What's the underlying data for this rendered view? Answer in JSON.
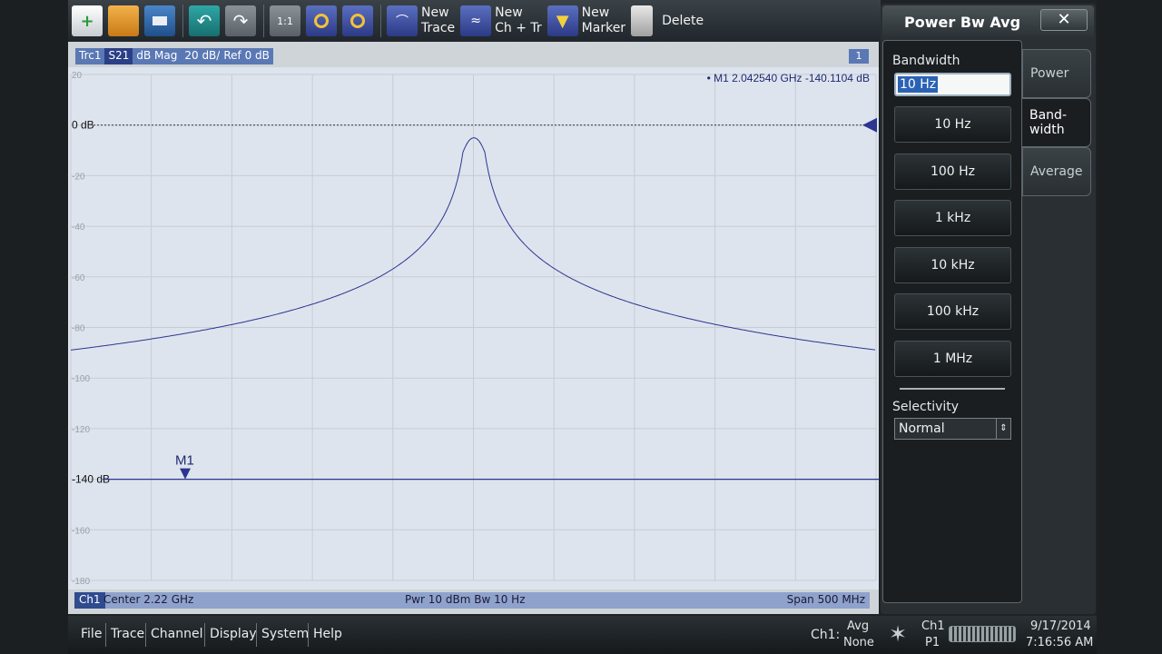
{
  "toolbar": {
    "new_trace": [
      "New",
      "Trace"
    ],
    "new_ch_tr": [
      "New",
      "Ch + Tr"
    ],
    "new_marker": [
      "New",
      "Marker"
    ],
    "delete": "Delete",
    "zoom_1to1": "1:1"
  },
  "trace_header": {
    "items": [
      "Trc1",
      "S21",
      "dB Mag",
      "20 dB/",
      "Ref 0 dB"
    ],
    "channel_badge": "1"
  },
  "marker_readout": {
    "name": "M1",
    "frequency": "2.042540",
    "freq_unit": "GHz",
    "value": "-140.1104",
    "value_unit": "dB"
  },
  "plot": {
    "y_ticks": [
      "20",
      "0 dB",
      "-20",
      "-40",
      "-60",
      "-80",
      "-100",
      "-120",
      "-140 dB",
      "-160",
      "-180"
    ],
    "marker_label": "M1",
    "ref_line_db": 0,
    "noise_floor_db": -140,
    "peak_db": -5,
    "ylim": [
      -180,
      20
    ]
  },
  "footer": {
    "channel": "Ch1",
    "center": "Center  2.22 GHz",
    "pwr_bw": "Pwr  10 dBm  Bw  10 Hz",
    "span": "Span  500 MHz"
  },
  "panel": {
    "title": "Power Bw Avg",
    "close": "✕",
    "tabs": [
      "Power",
      "Band-",
      "width",
      "Average"
    ],
    "bandwidth_label": "Bandwidth",
    "bandwidth_value": "10 Hz",
    "options": [
      "10 Hz",
      "100 Hz",
      "1 kHz",
      "10 kHz",
      "100 kHz",
      "1 MHz"
    ],
    "selectivity_label": "Selectivity",
    "selectivity_value": "Normal"
  },
  "status": {
    "menus": [
      "File",
      "Trace",
      "Channel",
      "Display",
      "System",
      "Help"
    ],
    "channel": "Ch1:",
    "avg_label": "Avg",
    "avg_value": "None",
    "ch_label": "Ch1",
    "port": "P1",
    "date": "9/17/2014",
    "time": "7:16:56 AM"
  },
  "colors": {
    "trace": "#2c3590",
    "plot_bg": "#dee4ee",
    "grid": "#c8ccd2"
  }
}
